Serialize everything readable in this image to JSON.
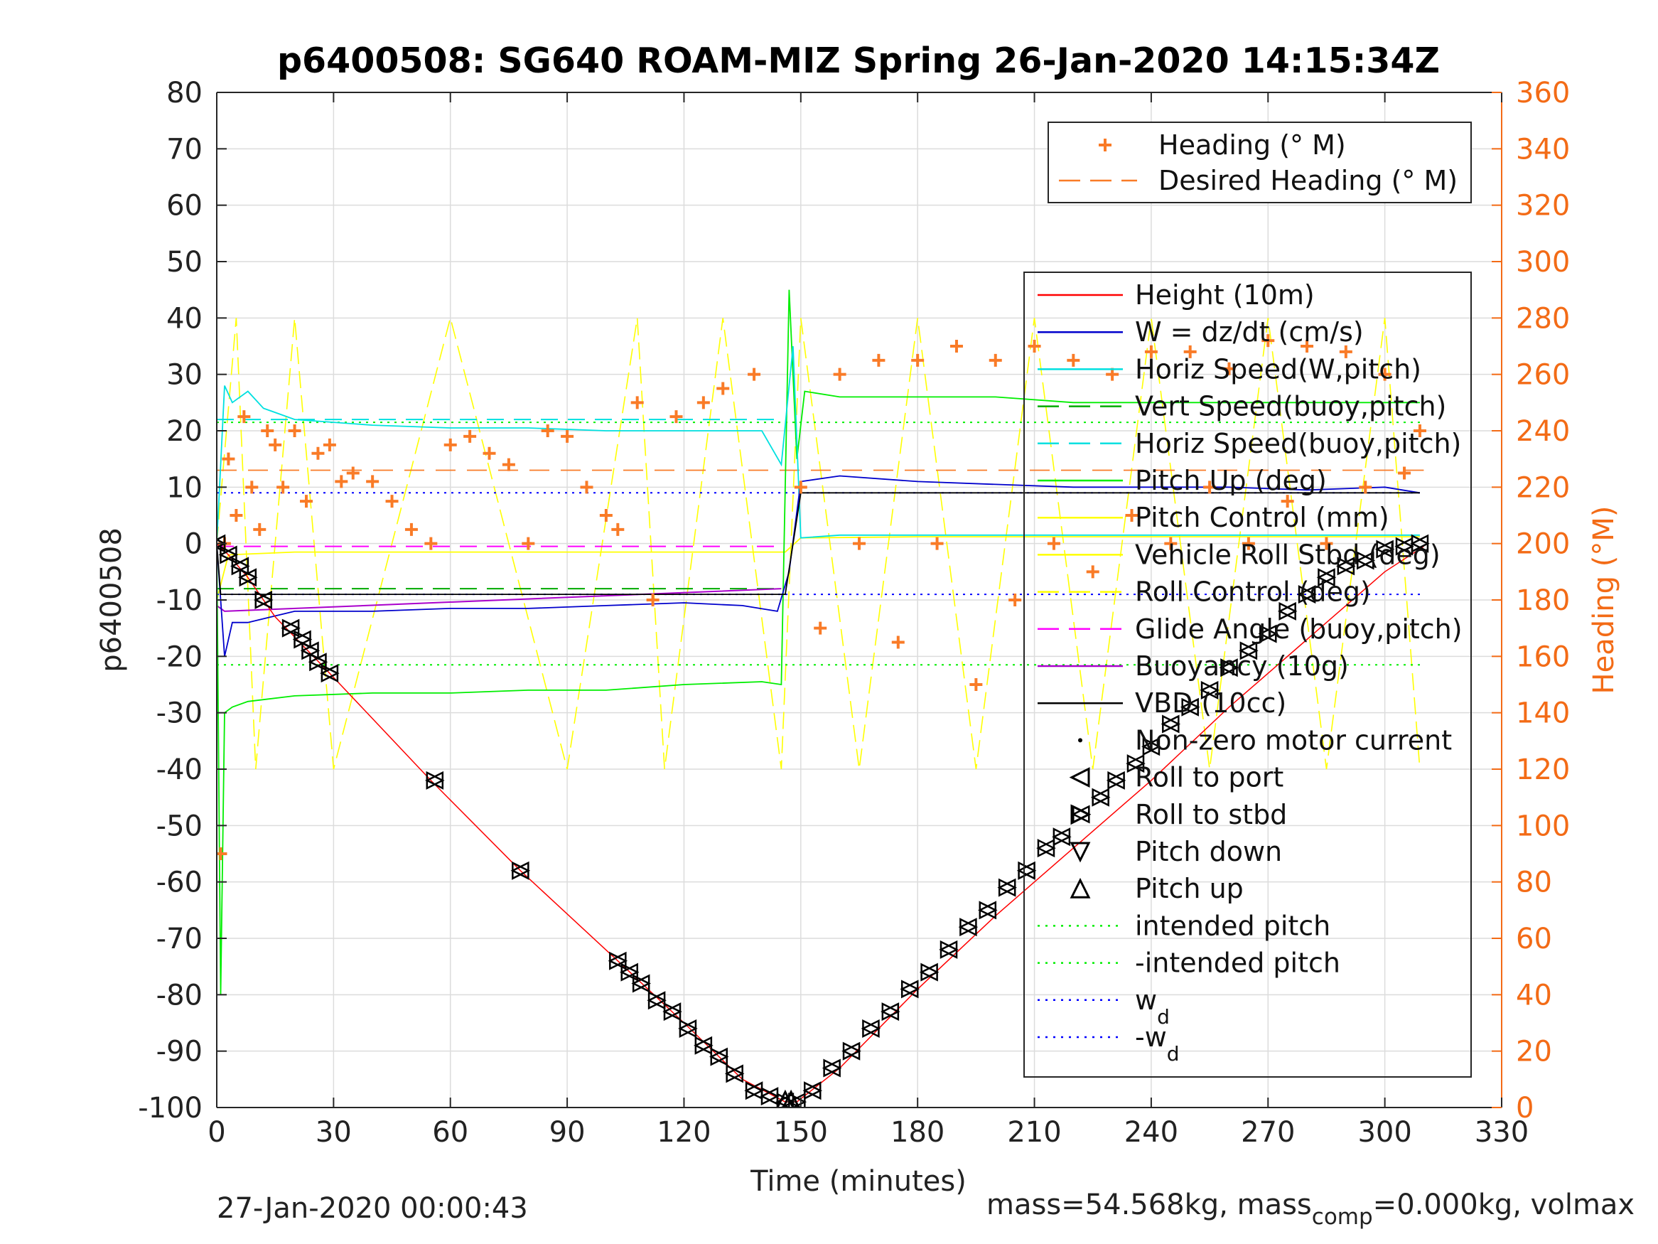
{
  "chart_data": {
    "type": "line",
    "title": "p6400508: SG640 ROAM-MIZ Spring 26-Jan-2020 14:15:34Z",
    "xlabel": "Time (minutes)",
    "ylabel": "p6400508",
    "ylabel_right": "Heading (°M)",
    "xlim": [
      0,
      330
    ],
    "ylim": [
      -100,
      80
    ],
    "ylim_right": [
      0,
      360
    ],
    "xticks": [
      0,
      30,
      60,
      90,
      120,
      150,
      180,
      210,
      240,
      270,
      300,
      330
    ],
    "yticks": [
      -100,
      -90,
      -80,
      -70,
      -60,
      -50,
      -40,
      -30,
      -20,
      -10,
      0,
      10,
      20,
      30,
      40,
      50,
      60,
      70,
      80
    ],
    "yticks_right": [
      0,
      20,
      40,
      60,
      80,
      100,
      120,
      140,
      160,
      180,
      200,
      220,
      240,
      260,
      280,
      300,
      320,
      340,
      360
    ],
    "grid": true,
    "legend_heading_position": "top-right",
    "legend_main_position": "right",
    "colors": {
      "height": "#ff0000",
      "w": "#0000cc",
      "horiz_speed": "#00e0e0",
      "vert_speed_buoy": "#00aa00",
      "pitch_up": "#00ee00",
      "pitch_control": "#ffff00",
      "roll": "#ffff00",
      "glide_angle": "#ff00ff",
      "buoyancy": "#aa00cc",
      "vbd": "#000000",
      "heading": "#f97b27",
      "intended_pitch": "#00ee00",
      "wd": "#0000ff",
      "right_axis": "#f36b16"
    },
    "legend_heading": [
      {
        "label": "Heading (° M)",
        "marker": "plus"
      },
      {
        "label": "Desired Heading (° M)",
        "marker": "dash"
      }
    ],
    "legend_main": [
      {
        "label": "Height (10m)",
        "marker": "line",
        "color": "#ff0000"
      },
      {
        "label": "W = dz/dt (cm/s)",
        "marker": "line",
        "color": "#0000cc"
      },
      {
        "label": "Horiz Speed(W,pitch)",
        "marker": "line",
        "color": "#00e0e0"
      },
      {
        "label": "Vert Speed(buoy,pitch)",
        "marker": "dashed",
        "color": "#00aa00"
      },
      {
        "label": "Horiz Speed(buoy,pitch)",
        "marker": "dashed",
        "color": "#00e0e0"
      },
      {
        "label": "Pitch Up (deg)",
        "marker": "line",
        "color": "#00ee00"
      },
      {
        "label": "Pitch Control (mm)",
        "marker": "line",
        "color": "#ffff00"
      },
      {
        "label": "Vehicle Roll Stbd (deg)",
        "marker": "line",
        "color": "#ffff00"
      },
      {
        "label": "Roll Control (deg)",
        "marker": "dashed",
        "color": "#ffff00"
      },
      {
        "label": "Glide Angle (buoy,pitch)",
        "marker": "dashed",
        "color": "#ff00ff"
      },
      {
        "label": "Buoyancy (10g)",
        "marker": "line",
        "color": "#aa00cc"
      },
      {
        "label": "VBD (10cc)",
        "marker": "line",
        "color": "#000000"
      },
      {
        "label": "Non-zero motor current",
        "marker": "dot",
        "color": "#000000"
      },
      {
        "label": "Roll to port",
        "marker": "tri-left",
        "color": "#000000"
      },
      {
        "label": "Roll to stbd",
        "marker": "tri-right",
        "color": "#000000"
      },
      {
        "label": "Pitch down",
        "marker": "tri-down",
        "color": "#000000"
      },
      {
        "label": "Pitch up",
        "marker": "tri-up",
        "color": "#000000"
      },
      {
        "label": "intended pitch",
        "marker": "dotted",
        "color": "#00ee00"
      },
      {
        "label": "-intended pitch",
        "marker": "dotted",
        "color": "#00ee00"
      },
      {
        "label": "w",
        "sub": "d",
        "marker": "dotted",
        "color": "#0000ff"
      },
      {
        "label": "-w",
        "sub": "d",
        "marker": "dotted",
        "color": "#0000ff"
      }
    ],
    "series": [
      {
        "name": "Height (10m)",
        "axis": "left",
        "x": [
          0,
          3,
          8,
          15,
          29,
          55,
          78,
          103,
          120,
          135,
          146,
          149,
          160,
          180,
          200,
          220,
          240,
          260,
          280,
          300,
          310
        ],
        "y": [
          0,
          -2,
          -6,
          -13,
          -23,
          -42,
          -58,
          -74,
          -85,
          -95,
          -99,
          -99,
          -93,
          -79,
          -66,
          -54,
          -42,
          -29,
          -17,
          -5,
          -0.5
        ]
      },
      {
        "name": "W = dz/dt (cm/s)",
        "axis": "left",
        "x": [
          0,
          2,
          4,
          8,
          20,
          40,
          60,
          80,
          100,
          120,
          135,
          144,
          147,
          150,
          160,
          180,
          200,
          220,
          240,
          260,
          280,
          300,
          309
        ],
        "y": [
          0,
          -20,
          -14,
          -14,
          -12,
          -12,
          -11.5,
          -11.5,
          -11,
          -10.5,
          -11,
          -12,
          -5,
          11,
          12,
          11,
          10.5,
          10,
          10,
          10,
          9.5,
          10,
          9
        ]
      },
      {
        "name": "Horiz Speed(W,pitch)",
        "axis": "left",
        "x": [
          0,
          2,
          4,
          8,
          12,
          20,
          40,
          60,
          80,
          100,
          120,
          140,
          145,
          148,
          150,
          160,
          180,
          200,
          220,
          240,
          260,
          280,
          300,
          309
        ],
        "y": [
          0,
          28,
          25,
          27,
          24,
          22,
          21,
          20.5,
          20.5,
          20,
          20,
          20,
          14,
          35,
          1,
          1.5,
          1.5,
          1.5,
          1.5,
          1.5,
          1.5,
          1.5,
          1.5,
          1.5
        ]
      },
      {
        "name": "Pitch Up (deg)",
        "axis": "left",
        "x": [
          0,
          1,
          2,
          4,
          8,
          20,
          40,
          60,
          80,
          100,
          120,
          140,
          145,
          147,
          149,
          151,
          160,
          180,
          200,
          220,
          240,
          260,
          280,
          300,
          309
        ],
        "y": [
          0,
          -80,
          -30,
          -29,
          -28,
          -27,
          -26.5,
          -26.5,
          -26,
          -26,
          -25,
          -24.5,
          -25,
          45,
          15,
          27,
          26,
          26,
          26,
          25,
          25,
          25,
          25,
          25,
          25
        ]
      },
      {
        "name": "VBD (10cc)",
        "axis": "left",
        "x": [
          0,
          1,
          145,
          146,
          148,
          150,
          309
        ],
        "y": [
          0,
          -9,
          -9,
          -9,
          0,
          9,
          9
        ]
      },
      {
        "name": "Buoyancy (10g)",
        "axis": "left",
        "x": [
          0,
          2,
          145
        ],
        "y": [
          -11,
          -12,
          -8
        ]
      },
      {
        "name": "Glide Angle (buoy,pitch)",
        "axis": "left",
        "x": [
          0,
          145
        ],
        "y": [
          -0.5,
          -0.5
        ]
      },
      {
        "name": "Pitch Control (mm)",
        "axis": "left",
        "x": [
          0,
          3,
          20,
          60,
          100,
          146,
          150,
          180,
          210,
          240,
          270,
          300,
          309
        ],
        "y": [
          -10,
          -2,
          -1.5,
          -1.5,
          -1.5,
          -1.5,
          1,
          1.2,
          1.2,
          1.2,
          1.2,
          1.2,
          1.2
        ]
      },
      {
        "name": "Vehicle Roll Stbd (deg)",
        "axis": "left",
        "x": [
          0,
          5,
          10,
          20,
          30,
          60,
          90,
          108,
          115,
          130,
          145,
          150,
          165,
          180,
          195,
          210,
          225,
          240,
          255,
          270,
          285,
          300,
          309
        ],
        "y": [
          0,
          40,
          -40,
          40,
          -40,
          40,
          -40,
          40,
          -40,
          40,
          -40,
          40,
          -40,
          40,
          -40,
          40,
          -40,
          40,
          -40,
          40,
          -40,
          40,
          -40
        ]
      },
      {
        "name": "Horiz Speed(buoy,pitch)",
        "axis": "left",
        "x": [
          0,
          145
        ],
        "y": [
          22,
          22
        ]
      },
      {
        "name": "Vert Speed(buoy,pitch)",
        "axis": "left",
        "x": [
          0,
          145
        ],
        "y": [
          -8,
          -8
        ]
      },
      {
        "name": "intended pitch",
        "axis": "left",
        "x": [
          0,
          310
        ],
        "y": [
          21.5,
          21.5
        ]
      },
      {
        "name": "-intended pitch",
        "axis": "left",
        "x": [
          0,
          310
        ],
        "y": [
          -21.5,
          -21.5
        ]
      },
      {
        "name": "wd",
        "axis": "left",
        "x": [
          0,
          310
        ],
        "y": [
          9,
          9
        ]
      },
      {
        "name": "-wd",
        "axis": "left",
        "x": [
          0,
          310
        ],
        "y": [
          -9,
          -9
        ]
      },
      {
        "name": "Desired Heading (° M)",
        "axis": "right",
        "x": [
          0,
          310
        ],
        "y": [
          226,
          226
        ]
      },
      {
        "name": "Heading (° M)",
        "axis": "right",
        "x": [
          1,
          2,
          3,
          5,
          7,
          9,
          11,
          13,
          15,
          17,
          20,
          23,
          26,
          29,
          32,
          35,
          40,
          45,
          50,
          55,
          60,
          65,
          70,
          75,
          80,
          85,
          90,
          95,
          100,
          103,
          108,
          112,
          118,
          125,
          130,
          138,
          150,
          155,
          160,
          165,
          170,
          175,
          180,
          185,
          190,
          195,
          200,
          205,
          210,
          215,
          220,
          225,
          230,
          235,
          240,
          245,
          250,
          255,
          260,
          265,
          270,
          275,
          280,
          285,
          290,
          295,
          300,
          305,
          309
        ],
        "y": [
          90,
          200,
          230,
          210,
          245,
          220,
          205,
          240,
          235,
          220,
          240,
          215,
          232,
          235,
          222,
          225,
          222,
          215,
          205,
          200,
          235,
          238,
          232,
          228,
          200,
          240,
          238,
          220,
          210,
          205,
          250,
          180,
          245,
          250,
          255,
          260,
          220,
          170,
          260,
          200,
          265,
          165,
          265,
          200,
          270,
          150,
          265,
          180,
          270,
          200,
          265,
          190,
          260,
          210,
          268,
          200,
          268,
          220,
          262,
          200,
          272,
          215,
          270,
          200,
          268,
          220,
          260,
          225,
          240
        ]
      }
    ],
    "markers": {
      "roll_markers": {
        "x": [
          0,
          3,
          6,
          8,
          12,
          19,
          22,
          24,
          26,
          29,
          56,
          78,
          103,
          106,
          109,
          113,
          117,
          121,
          125,
          129,
          133,
          138,
          142,
          146,
          149,
          153,
          158,
          163,
          168,
          173,
          178,
          183,
          188,
          193,
          198,
          203,
          208,
          213,
          217,
          222,
          227,
          231,
          236,
          240,
          245,
          250,
          255,
          260,
          265,
          270,
          275,
          280,
          285,
          290,
          295,
          300,
          305,
          309
        ],
        "y": [
          0,
          -2,
          -4,
          -6,
          -10,
          -15,
          -17,
          -19,
          -21,
          -23,
          -42,
          -58,
          -74,
          -76,
          -78,
          -81,
          -83,
          -86,
          -89,
          -91,
          -94,
          -97,
          -98,
          -99,
          -99,
          -97,
          -93,
          -90,
          -86,
          -83,
          -79,
          -76,
          -72,
          -68,
          -65,
          -61,
          -58,
          -54,
          -52,
          -48,
          -45,
          -42,
          -39,
          -36,
          -32,
          -29,
          -26,
          -22,
          -19,
          -16,
          -12,
          -9,
          -6,
          -4,
          -3,
          -1,
          -0.5,
          0
        ]
      }
    },
    "footer_left": "27-Jan-2020 00:00:43",
    "footer_right_a": "mass=54.568kg, mass",
    "footer_right_sub": "comp",
    "footer_right_b": "=0.000kg, volmax"
  }
}
